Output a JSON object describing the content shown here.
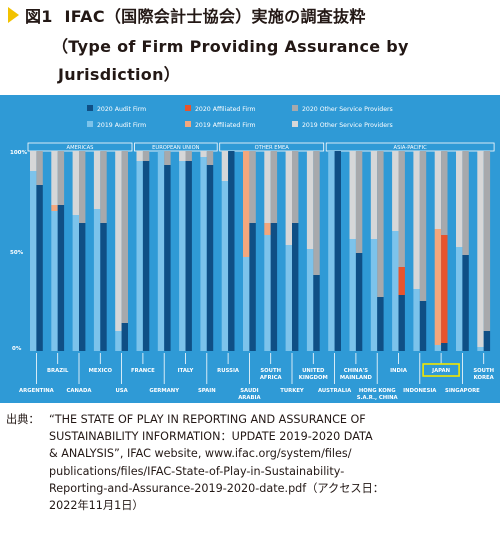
{
  "figure": {
    "label": "図1",
    "title_line1": "IFAC（国際会計士協会）実施の調査抜粋",
    "title_line2": "（Type of Firm Providing Assurance by",
    "title_line3": "Jurisdiction）"
  },
  "source": {
    "label": "出典：",
    "lines": [
      "“THE STATE OF PLAY IN REPORTING AND ASSURANCE OF",
      "SUSTAINABILITY INFORMATION：UPDATE 2019-2020 DATA",
      "& ANALYSIS”, IFAC website, www.ifac.org/system/files/",
      "publications/files/IFAC-State-of-Play-in-Sustainability-",
      "Reporting-and-Assurance-2019-2020-date.pdf（アクセス日：",
      "2022年11月1日）"
    ]
  },
  "chart_data": {
    "type": "bar",
    "stacked": true,
    "ylim": [
      0,
      100
    ],
    "yticks": [
      "100%",
      "50%",
      "0%"
    ],
    "colors": {
      "2020 Audit Firm": "#0f4f85",
      "2020 Affiliated Firm": "#e8542c",
      "2020 Other Service Providers": "#a7a9ac",
      "2019 Audit Firm": "#7cc3eb",
      "2019 Affiliated Firm": "#f3a77d",
      "2019 Other Service Providers": "#d6d7d8"
    },
    "legend": [
      "2020 Audit Firm",
      "2020 Affiliated Firm",
      "2020 Other Service Providers",
      "2019 Audit Firm",
      "2019 Affiliated Firm",
      "2019 Other Service Providers"
    ],
    "regions": [
      {
        "name": "AMERICAS",
        "start": 0,
        "end": 4
      },
      {
        "name": "EUROPEAN UNION",
        "start": 5,
        "end": 8
      },
      {
        "name": "OTHER EMEA",
        "start": 9,
        "end": 13
      },
      {
        "name": "ASIA-PACIFIC",
        "start": 14,
        "end": 21
      }
    ],
    "highlight": "JAPAN",
    "categories": [
      {
        "name": "ARGENTINA",
        "row": 1,
        "y2019": [
          90,
          0,
          10
        ],
        "y2020": [
          83,
          0,
          17
        ]
      },
      {
        "name": "BRAZIL",
        "row": 0,
        "y2019": [
          70,
          3,
          27
        ],
        "y2020": [
          73,
          0,
          27
        ]
      },
      {
        "name": "CANADA",
        "row": 1,
        "y2019": [
          68,
          0,
          32
        ],
        "y2020": [
          64,
          0,
          36
        ]
      },
      {
        "name": "MEXICO",
        "row": 0,
        "y2019": [
          71,
          0,
          29
        ],
        "y2020": [
          64,
          0,
          36
        ]
      },
      {
        "name": "USA",
        "row": 1,
        "y2019": [
          10,
          0,
          90
        ],
        "y2020": [
          14,
          0,
          86
        ]
      },
      {
        "name": "FRANCE",
        "row": 0,
        "y2019": [
          95,
          0,
          5
        ],
        "y2020": [
          95,
          0,
          5
        ]
      },
      {
        "name": "GERMANY",
        "row": 1,
        "y2019": [
          100,
          0,
          0
        ],
        "y2020": [
          93,
          0,
          7
        ]
      },
      {
        "name": "ITALY",
        "row": 0,
        "y2019": [
          95,
          0,
          5
        ],
        "y2020": [
          95,
          0,
          5
        ]
      },
      {
        "name": "SPAIN",
        "row": 1,
        "y2019": [
          97,
          0,
          3
        ],
        "y2020": [
          93,
          0,
          7
        ]
      },
      {
        "name": "RUSSIA",
        "row": 0,
        "y2019": [
          85,
          0,
          15
        ],
        "y2020": [
          100,
          0,
          0
        ]
      },
      {
        "name": "SAUDI ARABIA",
        "row": 1,
        "y2019": [
          47,
          53,
          0
        ],
        "y2020": [
          64,
          0,
          36
        ]
      },
      {
        "name": "SOUTH AFRICA",
        "row": 0,
        "y2019": [
          58,
          6,
          36
        ],
        "y2020": [
          64,
          0,
          36
        ]
      },
      {
        "name": "TURKEY",
        "row": 1,
        "y2019": [
          53,
          0,
          47
        ],
        "y2020": [
          64,
          0,
          36
        ]
      },
      {
        "name": "UNITED KINGDOM",
        "row": 0,
        "y2019": [
          51,
          0,
          49
        ],
        "y2020": [
          38,
          0,
          62
        ]
      },
      {
        "name": "AUSTRALIA",
        "row": 1,
        "y2019": [
          100,
          0,
          0
        ],
        "y2020": [
          100,
          0,
          0
        ]
      },
      {
        "name": "CHINA'S MAINLAND",
        "row": 0,
        "y2019": [
          56,
          0,
          44
        ],
        "y2020": [
          49,
          0,
          51
        ]
      },
      {
        "name": "HONG KONG S.A.R., CHINA",
        "row": 1,
        "y2019": [
          56,
          0,
          44
        ],
        "y2020": [
          27,
          0,
          73
        ]
      },
      {
        "name": "INDIA",
        "row": 0,
        "y2019": [
          60,
          0,
          40
        ],
        "y2020": [
          28,
          14,
          58
        ]
      },
      {
        "name": "INDONESIA",
        "row": 1,
        "y2019": [
          31,
          0,
          69
        ],
        "y2020": [
          25,
          0,
          75
        ]
      },
      {
        "name": "JAPAN",
        "row": 0,
        "y2019": [
          3,
          58,
          39
        ],
        "y2020": [
          4,
          54,
          42
        ]
      },
      {
        "name": "SINGAPORE",
        "row": 1,
        "y2019": [
          52,
          0,
          48
        ],
        "y2020": [
          48,
          0,
          52
        ]
      },
      {
        "name": "SOUTH KOREA",
        "row": 0,
        "y2019": [
          2,
          0,
          98
        ],
        "y2020": [
          10,
          0,
          90
        ]
      }
    ]
  }
}
